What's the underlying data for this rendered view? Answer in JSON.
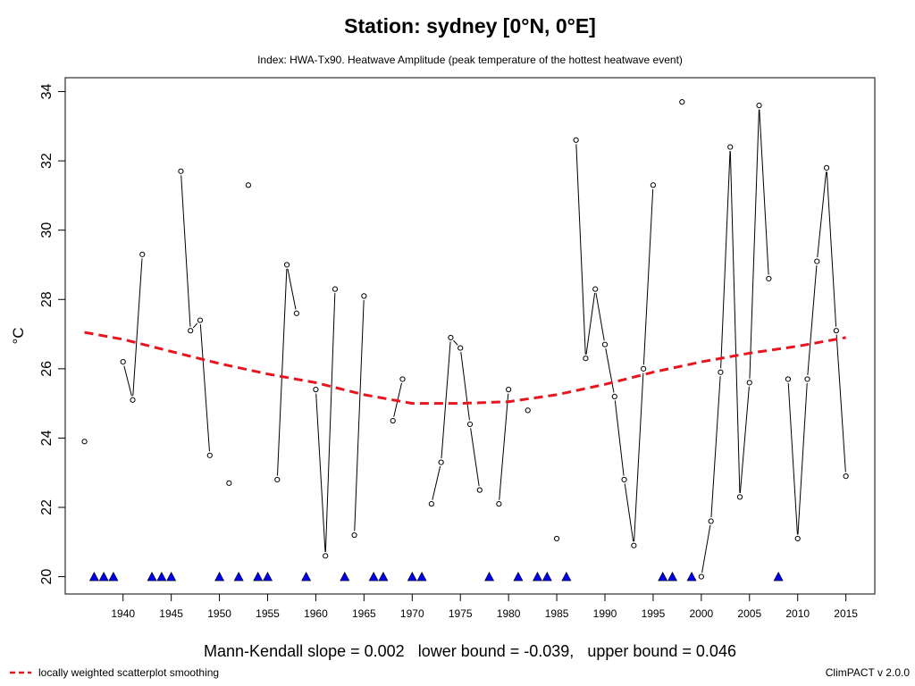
{
  "chart_data": {
    "type": "line",
    "title": "Station: sydney [0°N, 0°E]",
    "subtitle": "Index: HWA-Tx90. Heatwave Amplitude (peak temperature of the hottest heatwave event)",
    "ylabel": "°C",
    "xlabel": "",
    "xlim": [
      1934,
      2018
    ],
    "ylim": [
      19.5,
      34.4
    ],
    "x_ticks": [
      1940,
      1945,
      1950,
      1955,
      1960,
      1965,
      1970,
      1975,
      1980,
      1985,
      1990,
      1995,
      2000,
      2005,
      2010,
      2015
    ],
    "y_ticks": [
      20,
      22,
      24,
      26,
      28,
      30,
      32,
      34
    ],
    "grid": false,
    "series": [
      {
        "kind": "observed",
        "color": "#000000",
        "points": [
          [
            1936,
            23.9
          ],
          [
            1940,
            26.2
          ],
          [
            1941,
            25.1
          ],
          [
            1942,
            29.3
          ],
          [
            1946,
            31.7
          ],
          [
            1947,
            27.1
          ],
          [
            1948,
            27.4
          ],
          [
            1949,
            23.5
          ],
          [
            1951,
            22.7
          ],
          [
            1953,
            31.3
          ],
          [
            1956,
            22.8
          ],
          [
            1957,
            29.0
          ],
          [
            1958,
            27.6
          ],
          [
            1960,
            25.4
          ],
          [
            1961,
            20.6
          ],
          [
            1962,
            28.3
          ],
          [
            1964,
            21.2
          ],
          [
            1965,
            28.1
          ],
          [
            1968,
            24.5
          ],
          [
            1969,
            25.7
          ],
          [
            1972,
            22.1
          ],
          [
            1973,
            23.3
          ],
          [
            1974,
            26.9
          ],
          [
            1975,
            26.6
          ],
          [
            1976,
            24.4
          ],
          [
            1977,
            22.5
          ],
          [
            1979,
            22.1
          ],
          [
            1980,
            25.4
          ],
          [
            1982,
            24.8
          ],
          [
            1985,
            21.1
          ],
          [
            1987,
            32.6
          ],
          [
            1988,
            26.3
          ],
          [
            1989,
            28.3
          ],
          [
            1990,
            26.7
          ],
          [
            1991,
            25.2
          ],
          [
            1992,
            22.8
          ],
          [
            1993,
            20.9
          ],
          [
            1994,
            26.0
          ],
          [
            1995,
            31.3
          ],
          [
            1998,
            33.7
          ],
          [
            2000,
            20.0
          ],
          [
            2001,
            21.6
          ],
          [
            2002,
            25.9
          ],
          [
            2003,
            32.4
          ],
          [
            2004,
            22.3
          ],
          [
            2005,
            25.6
          ],
          [
            2006,
            33.6
          ],
          [
            2007,
            28.6
          ],
          [
            2009,
            25.7
          ],
          [
            2010,
            21.1
          ],
          [
            2011,
            25.7
          ],
          [
            2012,
            29.1
          ],
          [
            2013,
            31.8
          ],
          [
            2014,
            27.1
          ],
          [
            2015,
            22.9
          ]
        ]
      },
      {
        "name": "locally weighted scatterplot smoothing",
        "kind": "smooth",
        "color": "#e8141e",
        "points": [
          [
            1936,
            27.05
          ],
          [
            1940,
            26.85
          ],
          [
            1945,
            26.5
          ],
          [
            1950,
            26.15
          ],
          [
            1955,
            25.85
          ],
          [
            1960,
            25.6
          ],
          [
            1965,
            25.25
          ],
          [
            1970,
            25.0
          ],
          [
            1975,
            25.0
          ],
          [
            1980,
            25.05
          ],
          [
            1985,
            25.25
          ],
          [
            1990,
            25.55
          ],
          [
            1995,
            25.9
          ],
          [
            2000,
            26.2
          ],
          [
            2005,
            26.45
          ],
          [
            2010,
            26.65
          ],
          [
            2015,
            26.9
          ]
        ]
      }
    ],
    "missing_years": {
      "color": "#0000ee",
      "value": 20,
      "years": [
        1937,
        1938,
        1939,
        1943,
        1944,
        1945,
        1950,
        1952,
        1954,
        1955,
        1959,
        1963,
        1966,
        1967,
        1970,
        1971,
        1978,
        1981,
        1983,
        1984,
        1986,
        1996,
        1997,
        1999,
        2008
      ]
    },
    "legend": {
      "label": "locally weighted scatterplot smoothing",
      "placement": "bottom-left"
    },
    "footer_stats": "Mann-Kendall slope = 0.002   lower bound = -0.039,   upper bound = 0.046",
    "credit": "ClimPACT v 2.0.0"
  }
}
